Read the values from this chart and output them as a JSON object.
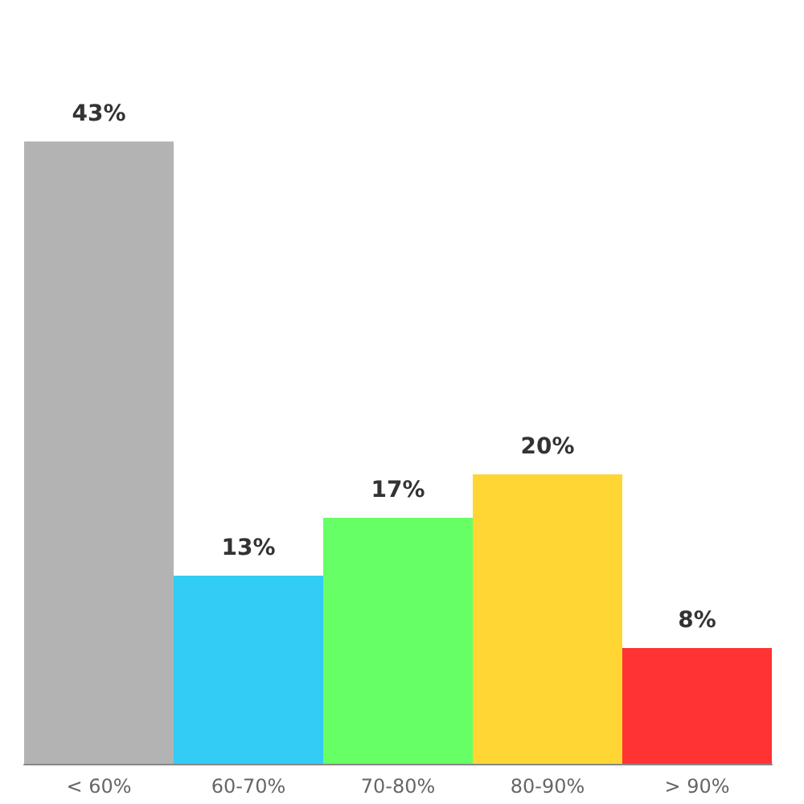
{
  "chart_data": {
    "type": "bar",
    "categories": [
      "< 60%",
      "60-70%",
      "70-80%",
      "80-90%",
      "> 90%"
    ],
    "values": [
      43,
      13,
      17,
      20,
      8
    ],
    "colors": [
      "#b3b3b3",
      "#33ccf5",
      "#66ff66",
      "#ffd633",
      "#ff3333"
    ],
    "value_labels": [
      "43%",
      "13%",
      "17%",
      "20%",
      "8%"
    ],
    "tick_labels": "x"
  }
}
